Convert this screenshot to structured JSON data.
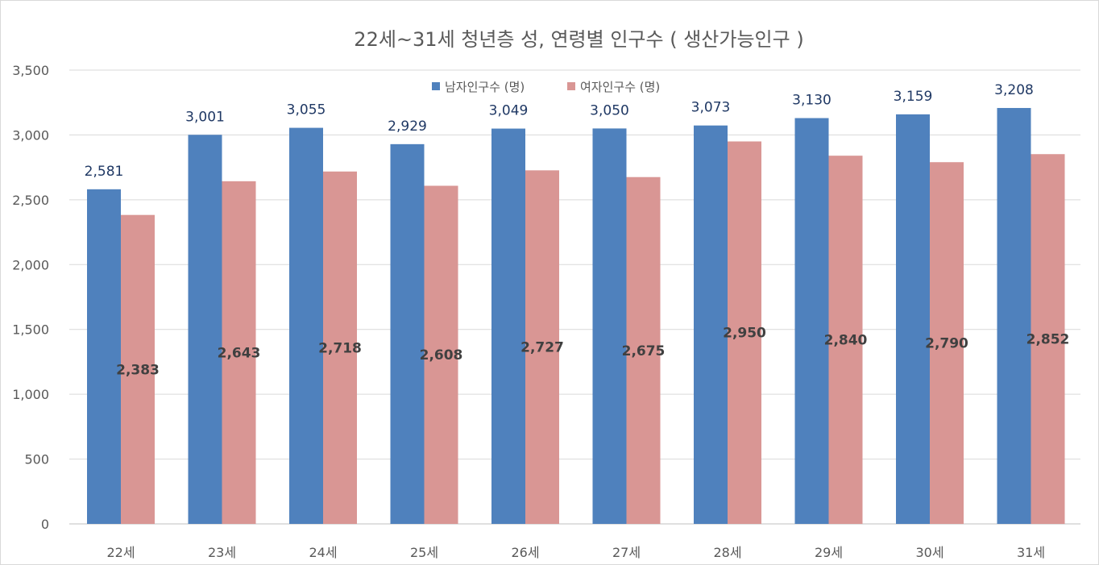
{
  "chart_data": {
    "type": "bar",
    "title": "22세~31세 청년층 성, 연령별 인구수 ( 생산가능인구 )",
    "categories": [
      "22세",
      "23세",
      "24세",
      "25세",
      "26세",
      "27세",
      "28세",
      "29세",
      "30세",
      "31세"
    ],
    "series": [
      {
        "name": "남자인구수 (명)",
        "color": "#4f81bd",
        "values": [
          2581,
          3001,
          3055,
          2929,
          3049,
          3050,
          3073,
          3130,
          3159,
          3208
        ],
        "labels": [
          "2,581",
          "3,001",
          "3,055",
          "2,929",
          "3,049",
          "3,050",
          "3,073",
          "3,130",
          "3,159",
          "3,208"
        ]
      },
      {
        "name": "여자인구수 (명)",
        "color": "#d99694",
        "values": [
          2383,
          2643,
          2718,
          2608,
          2727,
          2675,
          2950,
          2840,
          2790,
          2852
        ],
        "labels": [
          "2,383",
          "2,643",
          "2,718",
          "2,608",
          "2,727",
          "2,675",
          "2,950",
          "2,840",
          "2,790",
          "2,852"
        ]
      }
    ],
    "ylim": [
      0,
      3500
    ],
    "yticks": [
      0,
      500,
      1000,
      1500,
      2000,
      2500,
      3000,
      3500
    ],
    "ytick_labels": [
      "0",
      "500",
      "1,000",
      "1,500",
      "2,000",
      "2,500",
      "3,000",
      "3,500"
    ],
    "grid": true,
    "legend_position": "top-center",
    "xlabel": "",
    "ylabel": ""
  }
}
